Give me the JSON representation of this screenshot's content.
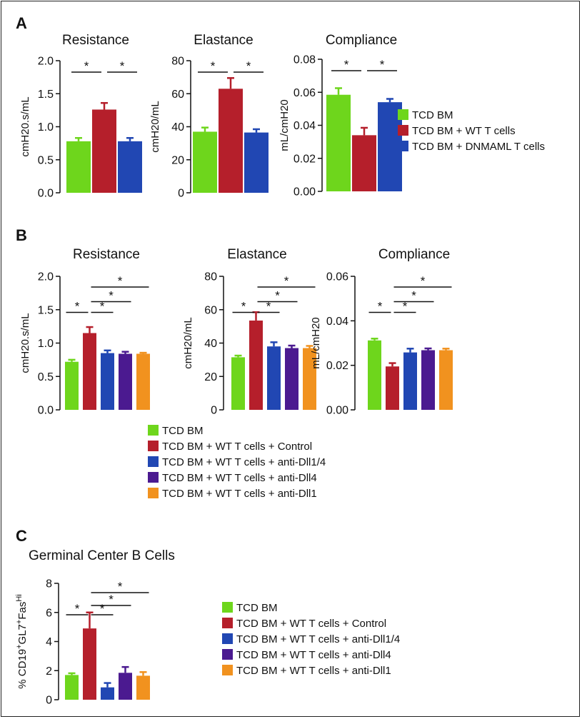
{
  "colors": {
    "green": "#6ed61c",
    "red": "#b51f2b",
    "blue": "#2147b3",
    "purple": "#4b1a90",
    "orange": "#f1921f"
  },
  "panels": [
    {
      "label": "A"
    },
    {
      "label": "B"
    },
    {
      "label": "C"
    }
  ],
  "legends": [
    {
      "items": [
        "TCD BM",
        "TCD BM + WT T cells",
        "TCD BM + DNMAML T cells"
      ],
      "colors": [
        "green",
        "red",
        "blue"
      ]
    },
    {
      "items": [
        "TCD BM",
        "TCD BM + WT T cells + Control",
        "TCD BM + WT T cells + anti-Dll1/4",
        "TCD BM + WT T cells + anti-Dll4",
        "TCD BM + WT T cells + anti-Dll1"
      ],
      "colors": [
        "green",
        "red",
        "blue",
        "purple",
        "orange"
      ]
    },
    {
      "items": [
        "TCD BM",
        "TCD BM + WT T cells + Control",
        "TCD BM + WT T cells + anti-Dll1/4",
        "TCD BM + WT T cells + anti-Dll4",
        "TCD BM + WT T cells + anti-Dll1"
      ],
      "colors": [
        "green",
        "red",
        "blue",
        "purple",
        "orange"
      ]
    }
  ],
  "chart_data": [
    {
      "type": "bar",
      "panel": "A",
      "title": "Resistance",
      "ylabel": "cmH20.s/mL",
      "ylim": [
        0,
        2.0
      ],
      "yticks": [
        "0.0",
        "0.5",
        "1.0",
        "1.5",
        "2.0"
      ],
      "colors": [
        "green",
        "red",
        "blue"
      ],
      "values": [
        0.78,
        1.26,
        0.78
      ],
      "errors": [
        0.05,
        0.1,
        0.05
      ],
      "significance": [
        {
          "from": 0,
          "to": 1,
          "label": "*"
        },
        {
          "from": 1,
          "to": 2,
          "label": "*"
        }
      ]
    },
    {
      "type": "bar",
      "panel": "A",
      "title": "Elastance",
      "ylabel": "cmH20/mL",
      "ylim": [
        0,
        80
      ],
      "yticks": [
        "0",
        "20",
        "40",
        "60",
        "80"
      ],
      "colors": [
        "green",
        "red",
        "blue"
      ],
      "values": [
        37,
        63,
        36.5
      ],
      "errors": [
        2.5,
        6.5,
        2
      ],
      "significance": [
        {
          "from": 0,
          "to": 1,
          "label": "*"
        },
        {
          "from": 1,
          "to": 2,
          "label": "*"
        }
      ]
    },
    {
      "type": "bar",
      "panel": "A",
      "title": "Compliance",
      "ylabel": "mL/cmH20",
      "ylim": [
        0,
        0.08
      ],
      "yticks": [
        "0.00",
        "0.02",
        "0.04",
        "0.06",
        "0.08"
      ],
      "colors": [
        "green",
        "red",
        "blue"
      ],
      "values": [
        0.0585,
        0.034,
        0.054
      ],
      "errors": [
        0.004,
        0.0045,
        0.002
      ],
      "significance": [
        {
          "from": 0,
          "to": 1,
          "label": "*"
        },
        {
          "from": 1,
          "to": 2,
          "label": "*"
        }
      ]
    },
    {
      "type": "bar",
      "panel": "B",
      "title": "Resistance",
      "ylabel": "cmH20.s/mL",
      "ylim": [
        0,
        2.0
      ],
      "yticks": [
        "0.0",
        "0.5",
        "1.0",
        "1.5",
        "2.0"
      ],
      "colors": [
        "green",
        "red",
        "blue",
        "purple",
        "orange"
      ],
      "values": [
        0.72,
        1.15,
        0.85,
        0.84,
        0.84
      ],
      "errors": [
        0.03,
        0.09,
        0.04,
        0.03,
        0.015
      ],
      "significance": [
        {
          "from": 0,
          "to": 1,
          "label": "*"
        },
        {
          "from": 1,
          "to": 2,
          "label": "*"
        },
        {
          "from": 1,
          "to": 3,
          "label": "*"
        },
        {
          "from": 1,
          "to": 4,
          "label": "*"
        }
      ]
    },
    {
      "type": "bar",
      "panel": "B",
      "title": "Elastance",
      "ylabel": "cmH20/mL",
      "ylim": [
        0,
        80
      ],
      "yticks": [
        "0",
        "20",
        "40",
        "60",
        "80"
      ],
      "colors": [
        "green",
        "red",
        "blue",
        "purple",
        "orange"
      ],
      "values": [
        31.5,
        53.5,
        38,
        37,
        37
      ],
      "errors": [
        1,
        5,
        2.5,
        1.5,
        1.3
      ],
      "significance": [
        {
          "from": 0,
          "to": 1,
          "label": "*"
        },
        {
          "from": 1,
          "to": 2,
          "label": "*"
        },
        {
          "from": 1,
          "to": 3,
          "label": "*"
        },
        {
          "from": 1,
          "to": 4,
          "label": "*"
        }
      ]
    },
    {
      "type": "bar",
      "panel": "B",
      "title": "Compliance",
      "ylabel": "mL/cmH20",
      "ylim": [
        0,
        0.06
      ],
      "yticks": [
        "0.00",
        "0.02",
        "0.04",
        "0.06"
      ],
      "colors": [
        "green",
        "red",
        "blue",
        "purple",
        "orange"
      ],
      "values": [
        0.0312,
        0.0195,
        0.0258,
        0.0268,
        0.0268
      ],
      "errors": [
        0.0008,
        0.0015,
        0.0017,
        0.0008,
        0.0007
      ],
      "significance": [
        {
          "from": 0,
          "to": 1,
          "label": "*"
        },
        {
          "from": 1,
          "to": 2,
          "label": "*"
        },
        {
          "from": 1,
          "to": 3,
          "label": "*"
        },
        {
          "from": 1,
          "to": 4,
          "label": "*"
        }
      ]
    },
    {
      "type": "bar",
      "panel": "C",
      "title": "Germinal Center B Cells",
      "ylabel_parts": [
        "% CD19",
        "+",
        "GL7",
        "+",
        "Fas",
        "Hi"
      ],
      "ylim": [
        0,
        8
      ],
      "yticks": [
        "0",
        "2",
        "4",
        "6",
        "8"
      ],
      "colors": [
        "green",
        "red",
        "blue",
        "purple",
        "orange"
      ],
      "values": [
        1.7,
        4.9,
        0.85,
        1.85,
        1.65
      ],
      "errors": [
        0.12,
        1.1,
        0.3,
        0.4,
        0.25
      ],
      "significance": [
        {
          "from": 0,
          "to": 1,
          "label": "*"
        },
        {
          "from": 1,
          "to": 2,
          "label": "*"
        },
        {
          "from": 1,
          "to": 3,
          "label": "*"
        },
        {
          "from": 1,
          "to": 4,
          "label": "*"
        }
      ]
    }
  ]
}
